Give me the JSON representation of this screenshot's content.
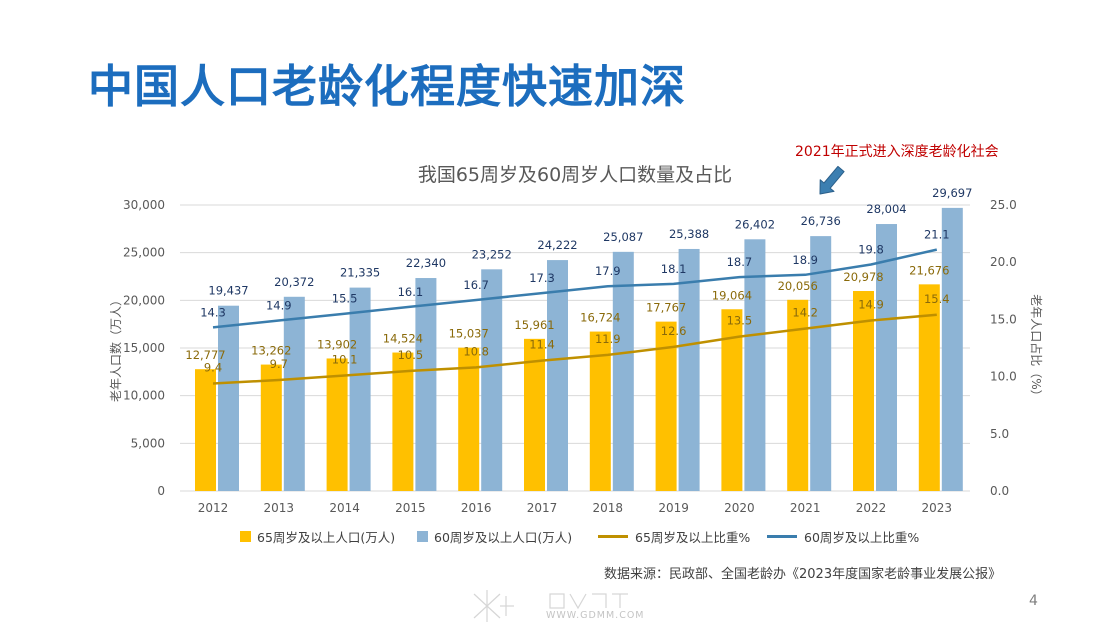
{
  "slide": {
    "title": "中国人口老龄化程度快速加深",
    "source": "数据来源：民政部、全国老龄办《2023年度国家老龄事业发展公报》",
    "page_number": "4",
    "watermark": "WWW.GDMM.COM"
  },
  "annotation": {
    "text": "2021年正式进入深度老龄化社会",
    "color": "#C00000",
    "arrow_icon": "arrow-down-left-icon",
    "arrow_color": "#3C7FB1",
    "arrow_stroke": "#2B5F8A"
  },
  "colors": {
    "title": "#1C6DBE",
    "bar65": "#FFC000",
    "bar60": "#8DB4D5",
    "line65": "#BF9000",
    "line60": "#3A7DAD",
    "label65": "#8A6A0A",
    "label60": "#1F3864",
    "grid": "#D9D9D9",
    "axis_text": "#595959"
  },
  "chart_data": {
    "type": "bar+line",
    "title": "我国65周岁及60周岁人口数量及占比",
    "categories": [
      "2012",
      "2013",
      "2014",
      "2015",
      "2016",
      "2017",
      "2018",
      "2019",
      "2020",
      "2021",
      "2022",
      "2023"
    ],
    "xlabel": "",
    "ylabel": "老年人口数（万人）",
    "y2label": "老年人口占比（%）",
    "ylim": [
      0,
      30000
    ],
    "y2lim": [
      0,
      25
    ],
    "yticks": [
      0,
      5000,
      10000,
      15000,
      20000,
      25000,
      30000
    ],
    "ytick_labels": [
      "0",
      "5,000",
      "10,000",
      "15,000",
      "20,000",
      "25,000",
      "30,000"
    ],
    "y2ticks": [
      0,
      5,
      10,
      15,
      20,
      25
    ],
    "y2tick_labels": [
      "0.0",
      "5.0",
      "10.0",
      "15.0",
      "20.0",
      "25.0"
    ],
    "grid": true,
    "series": [
      {
        "name": "65周岁及以上人口(万人)",
        "type": "bar",
        "axis": "left",
        "values": [
          12777,
          13262,
          13902,
          14524,
          15037,
          15961,
          16724,
          17767,
          19064,
          20056,
          20978,
          21676
        ],
        "labels": [
          "12,777",
          "13,262",
          "13,902",
          "14,524",
          "15,037",
          "15,961",
          "16,724",
          "17,767",
          "19,064",
          "20,056",
          "20,978",
          "21,676"
        ]
      },
      {
        "name": "60周岁及以上人口(万人)",
        "type": "bar",
        "axis": "left",
        "values": [
          19437,
          20372,
          21335,
          22340,
          23252,
          24222,
          25087,
          25388,
          26402,
          26736,
          28004,
          29697
        ],
        "labels": [
          "19,437",
          "20,372",
          "21,335",
          "22,340",
          "23,252",
          "24,222",
          "25,087",
          "25,388",
          "26,402",
          "26,736",
          "28,004",
          "29,697"
        ]
      },
      {
        "name": "65周岁及以上比重%",
        "type": "line",
        "axis": "right",
        "values": [
          9.4,
          9.7,
          10.1,
          10.5,
          10.8,
          11.4,
          11.9,
          12.6,
          13.5,
          14.2,
          14.9,
          15.4
        ],
        "labels": [
          "9.4",
          "9.7",
          "10.1",
          "10.5",
          "10.8",
          "11.4",
          "11.9",
          "12.6",
          "13.5",
          "14.2",
          "14.9",
          "15.4"
        ]
      },
      {
        "name": "60周岁及以上比重%",
        "type": "line",
        "axis": "right",
        "values": [
          14.3,
          14.9,
          15.5,
          16.1,
          16.7,
          17.3,
          17.9,
          18.1,
          18.7,
          18.9,
          19.8,
          21.1
        ],
        "labels": [
          "14.3",
          "14.9",
          "15.5",
          "16.1",
          "16.7",
          "17.3",
          "17.9",
          "18.1",
          "18.7",
          "18.9",
          "19.8",
          "21.1"
        ]
      }
    ]
  }
}
